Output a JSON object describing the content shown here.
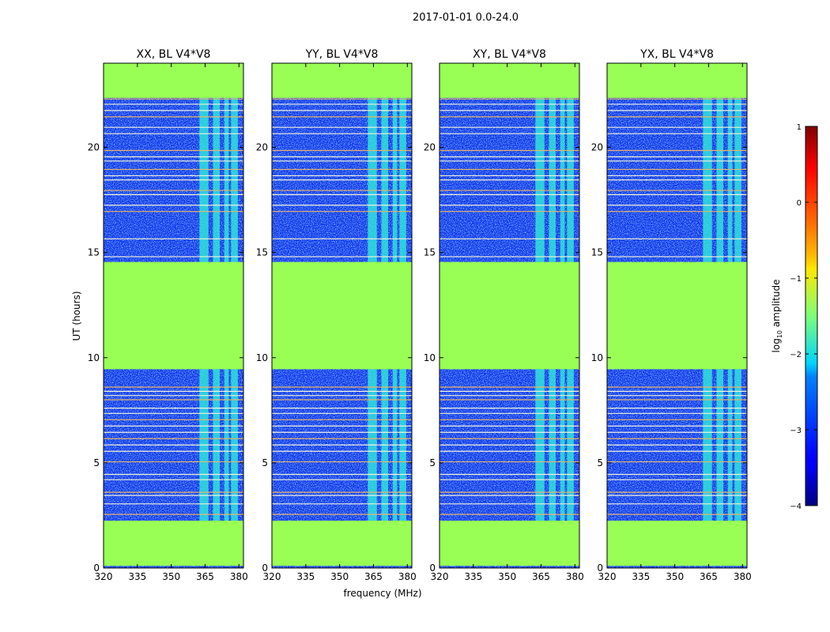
{
  "figure_title": "2017-01-01 0.0-24.0",
  "colors": {
    "no_data": "#99ff55",
    "background_noise": "#1430ea",
    "low_band": "#3f7cff",
    "rfi_mid": "#2ff0d6",
    "rfi_strong": "#d8ff3c",
    "flag_line_warm": "#e8b46a",
    "flag_line_pale": "#f2f2d8"
  },
  "chart_data": {
    "type": "heatmap",
    "xlabel": "frequency (MHz)",
    "ylabel": "UT (hours)",
    "xlim": [
      320,
      382
    ],
    "ylim": [
      0,
      24
    ],
    "xticks": [
      "320",
      "335",
      "350",
      "365",
      "380"
    ],
    "xtick_values": [
      320,
      335,
      350,
      365,
      380
    ],
    "yticks": [
      "0",
      "5",
      "10",
      "15",
      "20"
    ],
    "ytick_values": [
      0,
      5,
      10,
      15,
      20
    ],
    "panels": [
      {
        "title": "XX, BL V4*V8"
      },
      {
        "title": "YY, BL V4*V8"
      },
      {
        "title": "XY, BL V4*V8"
      },
      {
        "title": "YX, BL V4*V8"
      }
    ],
    "no_data_ut_ranges": [
      [
        0.1,
        2.25
      ],
      [
        9.45,
        14.55
      ],
      [
        22.35,
        24.0
      ]
    ],
    "rfi_bands_mhz": [
      [
        362.5,
        366.5
      ],
      [
        368.5,
        371.5
      ],
      [
        373.5,
        375.5
      ],
      [
        376.5,
        379.5
      ]
    ],
    "rfi_ut_ranges": [
      [
        2.25,
        9.45
      ],
      [
        14.55,
        22.35
      ]
    ],
    "flagged_ut_lines": [
      2.55,
      3.05,
      3.45,
      3.6,
      4.2,
      4.45,
      5.05,
      5.55,
      5.85,
      6.15,
      6.45,
      6.75,
      7.05,
      7.35,
      7.6,
      8.0,
      8.2,
      8.4,
      8.6,
      14.8,
      15.65,
      16.95,
      17.25,
      17.75,
      17.95,
      18.45,
      18.65,
      18.95,
      19.35,
      19.55,
      19.85,
      20.65,
      20.95,
      21.45,
      21.75,
      22.05,
      22.3
    ],
    "colorbar": {
      "label": "log10 amplitude",
      "label_main": "log",
      "label_sub": "10",
      "label_rest": " amplitude",
      "range": [
        -4,
        1
      ],
      "ticks": [
        "1",
        "0",
        "−1",
        "−2",
        "−3",
        "−4"
      ],
      "tick_values": [
        1,
        0,
        -1,
        -2,
        -3,
        -4
      ],
      "colormap": "jet"
    }
  }
}
